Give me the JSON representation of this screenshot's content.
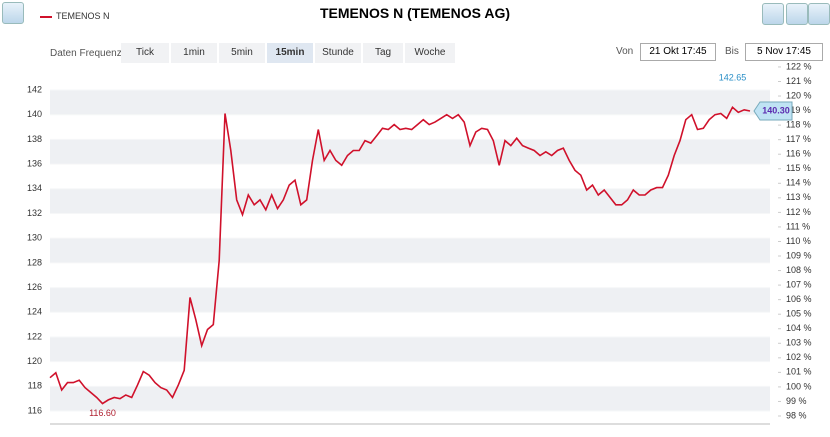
{
  "chart_data": {
    "type": "line",
    "title": "TEMENOS N (TEMENOS AG)",
    "controls": {
      "label": "Daten Frequenz",
      "options": [
        "Tick",
        "1min",
        "5min",
        "15min",
        "Stunde",
        "Tag",
        "Woche"
      ],
      "selected": "15min",
      "from_label": "Von",
      "from": "21 Okt 17:45",
      "to_label": "Bis",
      "to": "5 Nov 17:45"
    },
    "series": [
      {
        "name": "TEMENOS N",
        "color": "#d0112b",
        "values": [
          118.7,
          119.1,
          117.7,
          118.3,
          118.3,
          118.5,
          117.9,
          117.5,
          117.1,
          116.6,
          116.9,
          117.1,
          117.0,
          117.3,
          117.1,
          118.1,
          119.2,
          118.9,
          118.3,
          117.9,
          117.7,
          117.1,
          118.1,
          119.3,
          125.2,
          123.4,
          121.3,
          122.6,
          123.0,
          128.2,
          140.1,
          137.1,
          133.1,
          131.9,
          133.5,
          132.7,
          133.1,
          132.3,
          133.5,
          132.4,
          133.1,
          134.3,
          134.7,
          132.7,
          133.1,
          136.3,
          138.8,
          136.3,
          137.1,
          136.3,
          135.9,
          136.7,
          137.1,
          137.1,
          137.9,
          137.7,
          138.3,
          138.9,
          138.8,
          139.2,
          138.8,
          138.9,
          138.8,
          139.2,
          139.6,
          139.2,
          139.4,
          139.7,
          140.0,
          139.7,
          140.0,
          139.4,
          137.5,
          138.6,
          138.9,
          138.8,
          137.9,
          135.9,
          137.9,
          137.5,
          138.1,
          137.5,
          137.3,
          137.1,
          136.7,
          137.0,
          136.7,
          137.1,
          137.3,
          136.3,
          135.5,
          135.1,
          133.9,
          134.3,
          133.5,
          133.9,
          133.3,
          132.7,
          132.7,
          133.1,
          133.9,
          133.5,
          133.5,
          133.9,
          134.1,
          134.1,
          135.1,
          136.7,
          137.9,
          139.6,
          140.0,
          138.8,
          138.9,
          139.6,
          140.0,
          140.1,
          139.7,
          140.6,
          140.2,
          140.4,
          140.3
        ]
      }
    ],
    "ylim": [
      114.95,
      144.27
    ],
    "yticks": [
      116,
      118,
      120,
      122,
      124,
      126,
      128,
      130,
      132,
      134,
      136,
      138,
      140,
      142
    ],
    "y2lim": [
      97.45,
      122.34
    ],
    "y2ticks": [
      {
        "value": 98,
        "label": "98 %"
      },
      {
        "value": 99,
        "label": "99 %"
      },
      {
        "value": 100,
        "label": "100 %"
      },
      {
        "value": 101,
        "label": "101 %"
      },
      {
        "value": 102,
        "label": "102 %"
      },
      {
        "value": 103,
        "label": "103 %"
      },
      {
        "value": 104,
        "label": "104 %"
      },
      {
        "value": 105,
        "label": "105 %"
      },
      {
        "value": 106,
        "label": "106 %"
      },
      {
        "value": 107,
        "label": "107 %"
      },
      {
        "value": 108,
        "label": "108 %"
      },
      {
        "value": 109,
        "label": "109 %"
      },
      {
        "value": 110,
        "label": "110 %"
      },
      {
        "value": 111,
        "label": "111 %"
      },
      {
        "value": 112,
        "label": "112 %"
      },
      {
        "value": 113,
        "label": "113 %"
      },
      {
        "value": 114,
        "label": "114 %"
      },
      {
        "value": 115,
        "label": "115 %"
      },
      {
        "value": 116,
        "label": "116 %"
      },
      {
        "value": 117,
        "label": "117 %"
      },
      {
        "value": 118,
        "label": "118 %"
      },
      {
        "value": 119,
        "label": "119 %"
      },
      {
        "value": 120,
        "label": "120 %"
      },
      {
        "value": 121,
        "label": "121 %"
      },
      {
        "value": 122,
        "label": "122 %"
      }
    ],
    "grid": true,
    "annotations": [
      {
        "value": 142.65,
        "label": "142.65",
        "color": "#2a8fc7"
      },
      {
        "value": 116.6,
        "label": "116.60",
        "color": "#b02030"
      },
      {
        "value": 140.3,
        "label": "140.30",
        "color": "#5b2bb0"
      }
    ]
  }
}
